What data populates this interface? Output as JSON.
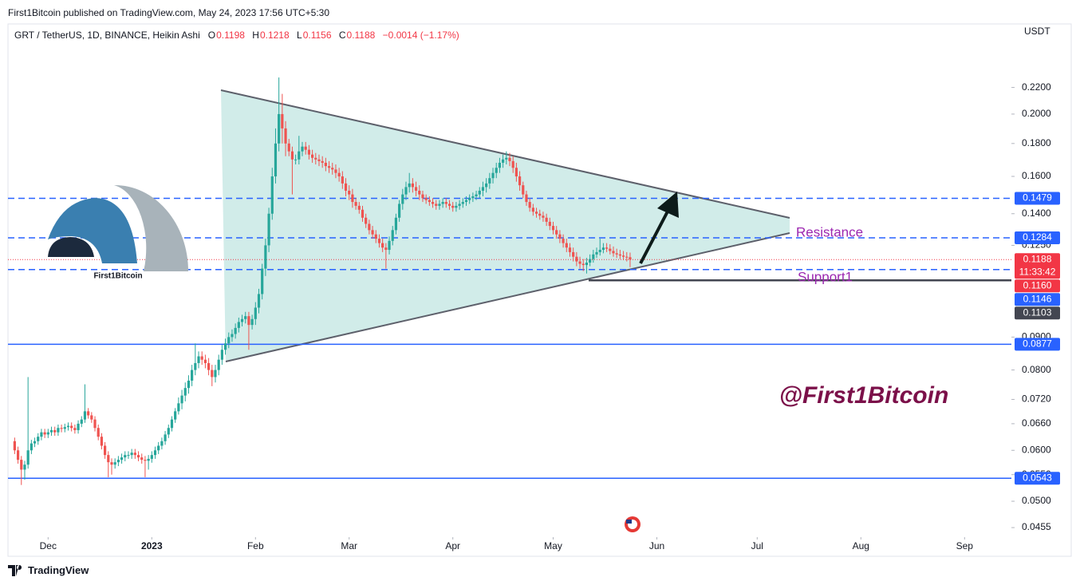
{
  "header": "First1Bitcoin published on TradingView.com, May 24, 2023 17:56 UTC+5:30",
  "chart_data": {
    "type": "candlestick",
    "symbol": "GRT / TetherUS, 1D, BINANCE, Heikin Ashi",
    "legend_labels": [
      "O",
      "H",
      "L",
      "C"
    ],
    "change": "−0.0014 (−1.17%)",
    "currency": "USDT",
    "up_color": "#26a69a",
    "down_color": "#ef5350",
    "log_scale": true,
    "grid": false,
    "ylim": [
      0.0441,
      0.2746
    ],
    "yticks": [
      {
        "value": 0.0455,
        "label": "0.0455"
      },
      {
        "value": 0.05,
        "label": "0.0500"
      },
      {
        "value": 0.055,
        "label": "0.0550"
      },
      {
        "value": 0.06,
        "label": "0.0600"
      },
      {
        "value": 0.066,
        "label": "0.0660"
      },
      {
        "value": 0.072,
        "label": "0.0720"
      },
      {
        "value": 0.08,
        "label": "0.0800"
      },
      {
        "value": 0.09,
        "label": "0.0900"
      },
      {
        "value": 0.125,
        "label": "0.1250"
      },
      {
        "value": 0.14,
        "label": "0.1400"
      },
      {
        "value": 0.16,
        "label": "0.1600"
      },
      {
        "value": 0.18,
        "label": "0.1800"
      },
      {
        "value": 0.2,
        "label": "0.2000"
      },
      {
        "value": 0.22,
        "label": "0.2200"
      }
    ],
    "xlim": [
      -2,
      298
    ],
    "xticks": [
      {
        "value": 10,
        "label": "Dec"
      },
      {
        "value": 41,
        "label": "2023"
      },
      {
        "value": 72,
        "label": "Feb"
      },
      {
        "value": 100,
        "label": "Mar"
      },
      {
        "value": 131,
        "label": "Apr"
      },
      {
        "value": 161,
        "label": "May"
      },
      {
        "value": 192,
        "label": "Jun"
      },
      {
        "value": 222,
        "label": "Jul"
      },
      {
        "value": 253,
        "label": "Aug"
      },
      {
        "value": 284,
        "label": "Sep"
      }
    ],
    "price_lines": [
      {
        "value": 0.1479,
        "color": "#2962ff",
        "line": "dashed"
      },
      {
        "value": 0.1284,
        "color": "#2962ff",
        "line": "dashed"
      },
      {
        "value": 0.116,
        "label": "0.1160",
        "color": "#f23645",
        "line": "none"
      },
      {
        "value": 0.1146,
        "color": "#2962ff",
        "line": "dashed"
      },
      {
        "value": 0.1103,
        "color": "#434651",
        "line": "ray"
      },
      {
        "value": 0.0877,
        "color": "#2962ff",
        "line": "solid"
      },
      {
        "value": 0.0543,
        "color": "#2962ff",
        "line": "solid"
      }
    ],
    "last_price": {
      "countdown": "11:33:42",
      "color": "#f23645"
    },
    "annotations": {
      "resistance": "Resistance",
      "support": "Support1",
      "watermark": "@First1Bitcoin"
    },
    "candles": [
      [
        0.062,
        0.0628,
        0.0592,
        0.06
      ],
      [
        0.06,
        0.0608,
        0.0572,
        0.058
      ],
      [
        0.058,
        0.0588,
        0.053,
        0.056
      ],
      [
        0.056,
        0.0578,
        0.054,
        0.057
      ],
      [
        0.057,
        0.078,
        0.0562,
        0.06
      ],
      [
        0.06,
        0.0623,
        0.0592,
        0.0615
      ],
      [
        0.0615,
        0.0628,
        0.0607,
        0.062
      ],
      [
        0.062,
        0.0638,
        0.0612,
        0.063
      ],
      [
        0.063,
        0.0648,
        0.0622,
        0.064
      ],
      [
        0.064,
        0.0648,
        0.0627,
        0.0635
      ],
      [
        0.0635,
        0.0648,
        0.0627,
        0.064
      ],
      [
        0.064,
        0.0653,
        0.0632,
        0.0645
      ],
      [
        0.0645,
        0.0653,
        0.0632,
        0.064
      ],
      [
        0.064,
        0.0658,
        0.0632,
        0.065
      ],
      [
        0.065,
        0.0658,
        0.064,
        0.0648
      ],
      [
        0.0648,
        0.066,
        0.064,
        0.0652
      ],
      [
        0.0652,
        0.0663,
        0.0644,
        0.0655
      ],
      [
        0.0655,
        0.0663,
        0.0642,
        0.065
      ],
      [
        0.065,
        0.0658,
        0.0637,
        0.0645
      ],
      [
        0.0645,
        0.0668,
        0.0637,
        0.066
      ],
      [
        0.066,
        0.0678,
        0.0652,
        0.067
      ],
      [
        0.067,
        0.076,
        0.0662,
        0.069
      ],
      [
        0.069,
        0.0698,
        0.0672,
        0.068
      ],
      [
        0.068,
        0.0688,
        0.0662,
        0.067
      ],
      [
        0.067,
        0.0678,
        0.0642,
        0.065
      ],
      [
        0.065,
        0.0658,
        0.0622,
        0.063
      ],
      [
        0.063,
        0.0638,
        0.0602,
        0.061
      ],
      [
        0.061,
        0.0618,
        0.0582,
        0.059
      ],
      [
        0.059,
        0.0598,
        0.0545,
        0.0575
      ],
      [
        0.0575,
        0.0583,
        0.055,
        0.057
      ],
      [
        0.057,
        0.0583,
        0.0562,
        0.0575
      ],
      [
        0.0575,
        0.0588,
        0.0567,
        0.058
      ],
      [
        0.058,
        0.0593,
        0.0572,
        0.0585
      ],
      [
        0.0585,
        0.0598,
        0.0577,
        0.059
      ],
      [
        0.059,
        0.0598,
        0.0582,
        0.059
      ],
      [
        0.059,
        0.0603,
        0.0582,
        0.0595
      ],
      [
        0.0595,
        0.0603,
        0.0582,
        0.059
      ],
      [
        0.059,
        0.0598,
        0.0577,
        0.0585
      ],
      [
        0.0585,
        0.0593,
        0.0572,
        0.058
      ],
      [
        0.058,
        0.0588,
        0.0545,
        0.0578
      ],
      [
        0.0578,
        0.059,
        0.056,
        0.0582
      ],
      [
        0.0582,
        0.0598,
        0.0574,
        0.059
      ],
      [
        0.059,
        0.0608,
        0.0582,
        0.06
      ],
      [
        0.06,
        0.0618,
        0.0592,
        0.061
      ],
      [
        0.061,
        0.0628,
        0.0602,
        0.062
      ],
      [
        0.062,
        0.0643,
        0.0612,
        0.0635
      ],
      [
        0.0635,
        0.0658,
        0.0627,
        0.065
      ],
      [
        0.065,
        0.0678,
        0.0642,
        0.067
      ],
      [
        0.067,
        0.0698,
        0.0662,
        0.069
      ],
      [
        0.069,
        0.0725,
        0.0682,
        0.071
      ],
      [
        0.071,
        0.0745,
        0.0695,
        0.073
      ],
      [
        0.073,
        0.0765,
        0.0715,
        0.075
      ],
      [
        0.075,
        0.0785,
        0.0735,
        0.077
      ],
      [
        0.077,
        0.0815,
        0.0755,
        0.08
      ],
      [
        0.08,
        0.088,
        0.0785,
        0.082
      ],
      [
        0.082,
        0.0855,
        0.0805,
        0.084
      ],
      [
        0.084,
        0.0855,
        0.0815,
        0.083
      ],
      [
        0.083,
        0.0845,
        0.0805,
        0.082
      ],
      [
        0.082,
        0.0835,
        0.0785,
        0.08
      ],
      [
        0.08,
        0.0815,
        0.0755,
        0.078
      ],
      [
        0.078,
        0.0815,
        0.0765,
        0.08
      ],
      [
        0.08,
        0.0845,
        0.0785,
        0.083
      ],
      [
        0.083,
        0.0875,
        0.0815,
        0.086
      ],
      [
        0.086,
        0.0895,
        0.0845,
        0.088
      ],
      [
        0.088,
        0.0915,
        0.0865,
        0.09
      ],
      [
        0.09,
        0.0925,
        0.0885,
        0.091
      ],
      [
        0.091,
        0.0945,
        0.0895,
        0.093
      ],
      [
        0.093,
        0.0965,
        0.0915,
        0.095
      ],
      [
        0.095,
        0.0975,
        0.0935,
        0.096
      ],
      [
        0.096,
        0.0985,
        0.0945,
        0.097
      ],
      [
        0.097,
        0.0985,
        0.086,
        0.094
      ],
      [
        0.094,
        0.0975,
        0.0925,
        0.096
      ],
      [
        0.096,
        0.102,
        0.094,
        0.1
      ],
      [
        0.1,
        0.107,
        0.098,
        0.105
      ],
      [
        0.105,
        0.117,
        0.103,
        0.115
      ],
      [
        0.115,
        0.128,
        0.112,
        0.125
      ],
      [
        0.125,
        0.143,
        0.122,
        0.14
      ],
      [
        0.14,
        0.165,
        0.137,
        0.16
      ],
      [
        0.16,
        0.19,
        0.156,
        0.18
      ],
      [
        0.18,
        0.228,
        0.175,
        0.2
      ],
      [
        0.2,
        0.215,
        0.18,
        0.19
      ],
      [
        0.19,
        0.195,
        0.172,
        0.18
      ],
      [
        0.18,
        0.183,
        0.172,
        0.175
      ],
      [
        0.175,
        0.178,
        0.15,
        0.17
      ],
      [
        0.17,
        0.173,
        0.167,
        0.17
      ],
      [
        0.17,
        0.185,
        0.167,
        0.175
      ],
      [
        0.175,
        0.181,
        0.172,
        0.178
      ],
      [
        0.178,
        0.181,
        0.173,
        0.176
      ],
      [
        0.176,
        0.179,
        0.17,
        0.173
      ],
      [
        0.173,
        0.176,
        0.168,
        0.171
      ],
      [
        0.171,
        0.174,
        0.167,
        0.17
      ],
      [
        0.17,
        0.173,
        0.166,
        0.169
      ],
      [
        0.169,
        0.172,
        0.165,
        0.168
      ],
      [
        0.168,
        0.171,
        0.163,
        0.166
      ],
      [
        0.166,
        0.169,
        0.162,
        0.165
      ],
      [
        0.165,
        0.168,
        0.161,
        0.164
      ],
      [
        0.164,
        0.167,
        0.159,
        0.162
      ],
      [
        0.162,
        0.165,
        0.157,
        0.16
      ],
      [
        0.16,
        0.163,
        0.153,
        0.156
      ],
      [
        0.156,
        0.159,
        0.149,
        0.152
      ],
      [
        0.152,
        0.155,
        0.147,
        0.15
      ],
      [
        0.15,
        0.153,
        0.143,
        0.146
      ],
      [
        0.146,
        0.148,
        0.142,
        0.144
      ],
      [
        0.144,
        0.146,
        0.14,
        0.142
      ],
      [
        0.142,
        0.144,
        0.136,
        0.138
      ],
      [
        0.138,
        0.14,
        0.133,
        0.135
      ],
      [
        0.135,
        0.137,
        0.13,
        0.132
      ],
      [
        0.132,
        0.134,
        0.128,
        0.13
      ],
      [
        0.13,
        0.132,
        0.126,
        0.128
      ],
      [
        0.128,
        0.13,
        0.124,
        0.126
      ],
      [
        0.126,
        0.128,
        0.122,
        0.124
      ],
      [
        0.124,
        0.126,
        0.115,
        0.123
      ],
      [
        0.123,
        0.129,
        0.121,
        0.127
      ],
      [
        0.127,
        0.134,
        0.125,
        0.132
      ],
      [
        0.132,
        0.14,
        0.13,
        0.138
      ],
      [
        0.138,
        0.147,
        0.136,
        0.145
      ],
      [
        0.145,
        0.153,
        0.142,
        0.15
      ],
      [
        0.15,
        0.157,
        0.147,
        0.154
      ],
      [
        0.154,
        0.162,
        0.151,
        0.156
      ],
      [
        0.156,
        0.159,
        0.151,
        0.154
      ],
      [
        0.154,
        0.157,
        0.149,
        0.152
      ],
      [
        0.152,
        0.155,
        0.147,
        0.15
      ],
      [
        0.15,
        0.152,
        0.146,
        0.148
      ],
      [
        0.148,
        0.15,
        0.145,
        0.147
      ],
      [
        0.147,
        0.149,
        0.144,
        0.146
      ],
      [
        0.146,
        0.148,
        0.143,
        0.145
      ],
      [
        0.145,
        0.147,
        0.142,
        0.144
      ],
      [
        0.144,
        0.147,
        0.142,
        0.145
      ],
      [
        0.145,
        0.148,
        0.143,
        0.146
      ],
      [
        0.146,
        0.148,
        0.143,
        0.145
      ],
      [
        0.145,
        0.147,
        0.142,
        0.144
      ],
      [
        0.144,
        0.146,
        0.141,
        0.143
      ],
      [
        0.143,
        0.146,
        0.141,
        0.144
      ],
      [
        0.144,
        0.147,
        0.142,
        0.145
      ],
      [
        0.145,
        0.148,
        0.143,
        0.146
      ],
      [
        0.146,
        0.149,
        0.144,
        0.147
      ],
      [
        0.147,
        0.15,
        0.145,
        0.148
      ],
      [
        0.148,
        0.151,
        0.146,
        0.149
      ],
      [
        0.149,
        0.152,
        0.147,
        0.15
      ],
      [
        0.15,
        0.154,
        0.148,
        0.152
      ],
      [
        0.152,
        0.157,
        0.149,
        0.154
      ],
      [
        0.154,
        0.159,
        0.151,
        0.156
      ],
      [
        0.156,
        0.162,
        0.153,
        0.159
      ],
      [
        0.159,
        0.165,
        0.156,
        0.162
      ],
      [
        0.162,
        0.168,
        0.159,
        0.165
      ],
      [
        0.165,
        0.171,
        0.162,
        0.168
      ],
      [
        0.168,
        0.173,
        0.165,
        0.17
      ],
      [
        0.17,
        0.175,
        0.167,
        0.171
      ],
      [
        0.171,
        0.174,
        0.166,
        0.169
      ],
      [
        0.169,
        0.172,
        0.162,
        0.165
      ],
      [
        0.165,
        0.168,
        0.157,
        0.16
      ],
      [
        0.16,
        0.163,
        0.152,
        0.155
      ],
      [
        0.155,
        0.157,
        0.148,
        0.15
      ],
      [
        0.15,
        0.152,
        0.144,
        0.146
      ],
      [
        0.146,
        0.148,
        0.141,
        0.143
      ],
      [
        0.143,
        0.145,
        0.139,
        0.141
      ],
      [
        0.141,
        0.143,
        0.138,
        0.14
      ],
      [
        0.14,
        0.142,
        0.137,
        0.139
      ],
      [
        0.139,
        0.141,
        0.136,
        0.138
      ],
      [
        0.138,
        0.14,
        0.134,
        0.136
      ],
      [
        0.136,
        0.138,
        0.132,
        0.134
      ],
      [
        0.134,
        0.136,
        0.13,
        0.132
      ],
      [
        0.132,
        0.134,
        0.128,
        0.13
      ],
      [
        0.13,
        0.132,
        0.126,
        0.128
      ],
      [
        0.128,
        0.13,
        0.124,
        0.126
      ],
      [
        0.126,
        0.128,
        0.122,
        0.124
      ],
      [
        0.124,
        0.126,
        0.12,
        0.122
      ],
      [
        0.122,
        0.124,
        0.118,
        0.12
      ],
      [
        0.12,
        0.122,
        0.116,
        0.118
      ],
      [
        0.118,
        0.12,
        0.115,
        0.117
      ],
      [
        0.117,
        0.119,
        0.114,
        0.1165
      ],
      [
        0.1165,
        0.1195,
        0.113,
        0.1175
      ],
      [
        0.1175,
        0.121,
        0.116,
        0.119
      ],
      [
        0.119,
        0.123,
        0.1175,
        0.121
      ],
      [
        0.121,
        0.124,
        0.1195,
        0.122
      ],
      [
        0.122,
        0.128,
        0.1205,
        0.123
      ],
      [
        0.123,
        0.126,
        0.1215,
        0.124
      ],
      [
        0.124,
        0.126,
        0.122,
        0.1235
      ],
      [
        0.1235,
        0.1255,
        0.121,
        0.1225
      ],
      [
        0.1225,
        0.1245,
        0.12,
        0.1215
      ],
      [
        0.1215,
        0.1235,
        0.1195,
        0.121
      ],
      [
        0.121,
        0.123,
        0.119,
        0.1205
      ],
      [
        0.1205,
        0.1225,
        0.1185,
        0.12
      ],
      [
        0.12,
        0.122,
        0.118,
        0.1198
      ],
      [
        0.1198,
        0.1218,
        0.1156,
        0.1188
      ]
    ]
  },
  "logo": "First1Bitcoin",
  "footer": "TradingView"
}
